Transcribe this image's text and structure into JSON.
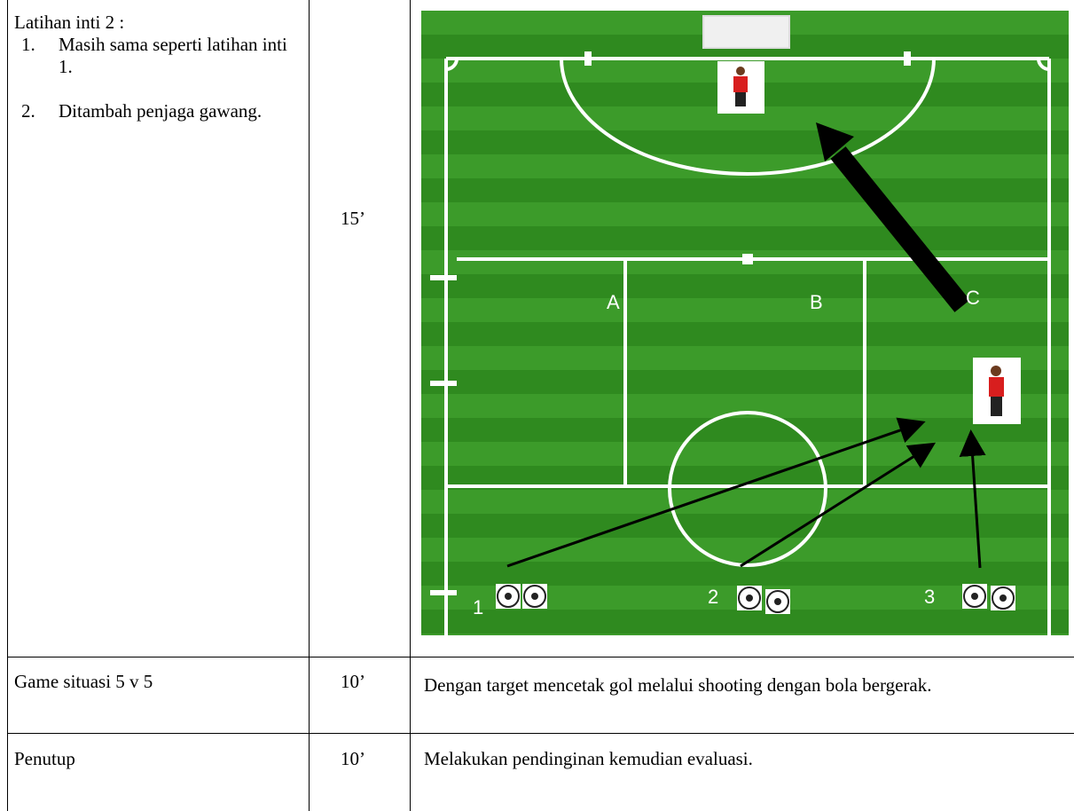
{
  "rows": [
    {
      "activity": {
        "title": "Latihan inti 2 :",
        "items": [
          {
            "number": "1.",
            "text": "Masih sama seperti latihan inti 1."
          },
          {
            "number": "2.",
            "text": "Ditambah penjaga gawang."
          }
        ]
      },
      "time": "15’",
      "diagram": {
        "zones": [
          "A",
          "B",
          "C"
        ],
        "stations": [
          "1",
          "2",
          "3"
        ]
      }
    },
    {
      "activity": {
        "title": "Game situasi 5 v 5"
      },
      "time": "10’",
      "description": "Dengan target mencetak gol melalui shooting dengan bola bergerak."
    },
    {
      "activity": {
        "title": "Penutup"
      },
      "time": "10’",
      "description": "Melakukan pendinginan kemudian evaluasi."
    }
  ]
}
